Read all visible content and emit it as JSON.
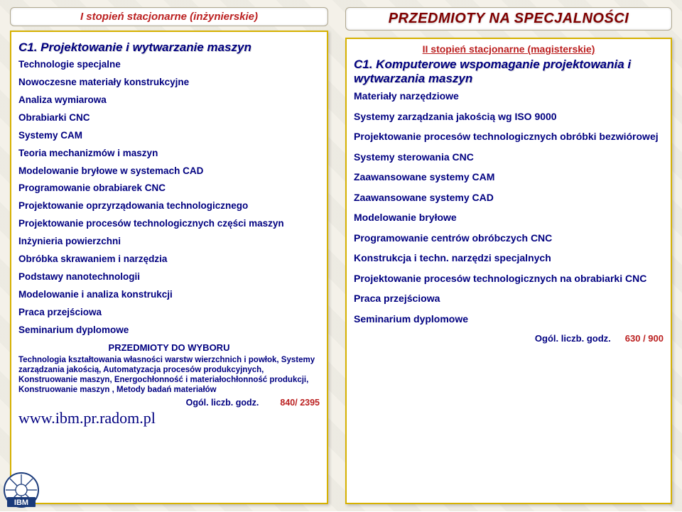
{
  "left": {
    "level_title": "I stopień stacjonarne (inżynierskie)",
    "spec_title": "C1. Projektowanie i wytwarzanie maszyn",
    "items": [
      "Technologie specjalne",
      "Nowoczesne materiały konstrukcyjne",
      "Analiza wymiarowa",
      "Obrabiarki CNC",
      "Systemy CAM",
      "Teoria mechanizmów i maszyn",
      "Modelowanie bryłowe w systemach CAD",
      "Programowanie obrabiarek CNC",
      "Projektowanie oprzyrządowania technologicznego",
      "Projektowanie procesów technologicznych części maszyn",
      "Inżynieria powierzchni",
      "Obróbka skrawaniem i narzędzia",
      "Podstawy nanotechnologii",
      "Modelowanie i analiza konstrukcji",
      "Praca przejściowa",
      "Seminarium dyplomowe"
    ],
    "choose_header": "PRZEDMIOTY DO WYBORU",
    "choose_text": "Technologia kształtowania własności warstw wierzchnich i powłok, Systemy zarządzania jakością, Automatyzacja procesów produkcyjnych, Konstruowanie maszyn, Energochłonność i materiałochłonność produkcji, Konstruowanie maszyn , Metody badań materiałów",
    "hours_label": "Ogól. liczb. godz.",
    "hours_value": "840/ 2395",
    "url": "www.ibm.pr.radom.pl",
    "logo_text": "IBM"
  },
  "right": {
    "main_title": "PRZEDMIOTY NA SPECJALNOŚCI",
    "level_sub": "II stopień stacjonarne (magisterskie)",
    "spec_title": "C1. Komputerowe wspomaganie projektowania i wytwarzania maszyn",
    "items": [
      "Materiały narzędziowe",
      "Systemy zarządzania jakością wg ISO 9000",
      "Projektowanie procesów technologicznych obróbki bezwiórowej",
      "Systemy sterowania CNC",
      "Zaawansowane systemy CAM",
      "Zaawansowane systemy CAD",
      "Modelowanie bryłowe",
      "Programowanie centrów obróbczych CNC",
      "Konstrukcja i techn. narzędzi specjalnych",
      "Projektowanie procesów technologicznych na obrabiarki CNC",
      "Praca przejściowa",
      "Seminarium dyplomowe"
    ],
    "hours_label": "Ogól. liczb. godz.",
    "hours_value": "630 / 900"
  },
  "colors": {
    "navy": "#000080",
    "red": "#bb2020",
    "gold": "#d6b100",
    "maroon": "#800000"
  }
}
